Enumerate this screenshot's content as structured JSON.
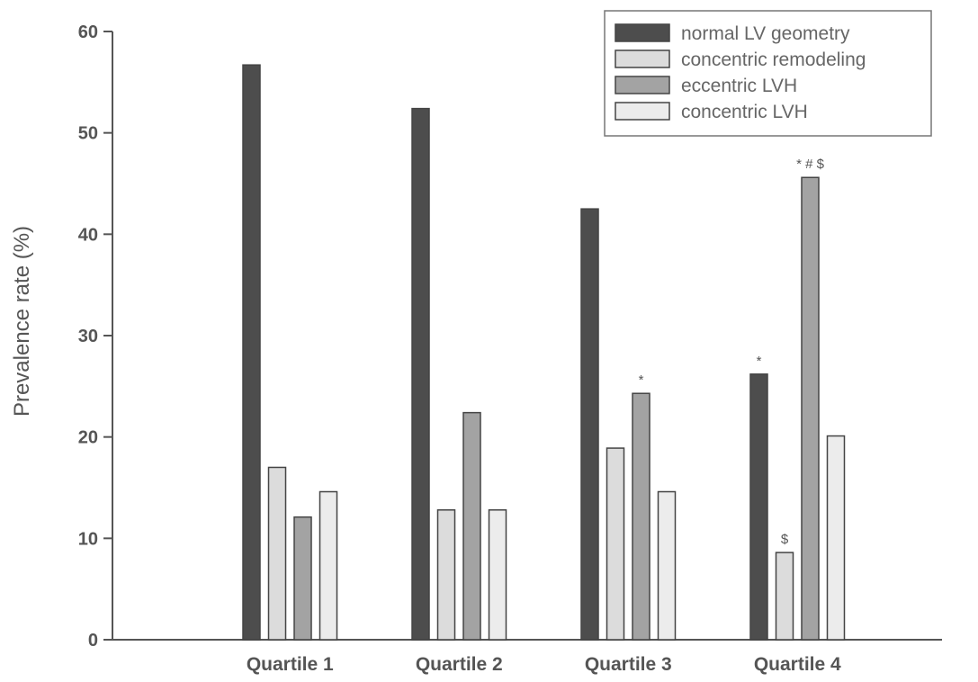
{
  "chart_data": {
    "type": "bar",
    "title": "",
    "xlabel": "",
    "ylabel": "Prevalence rate (%)",
    "ylim": [
      0,
      60
    ],
    "yticks": [
      0,
      10,
      20,
      30,
      40,
      50,
      60
    ],
    "grid": false,
    "legend_position": "top-right",
    "categories": [
      "Quartile 1",
      "Quartile 2",
      "Quartile 3",
      "Quartile 4"
    ],
    "series": [
      {
        "name": "normal LV geometry",
        "color": "#4d4d4d",
        "values": [
          56.7,
          52.4,
          42.5,
          26.2
        ]
      },
      {
        "name": "concentric remodeling",
        "color": "#dcdcdc",
        "values": [
          17.0,
          12.8,
          18.9,
          8.6
        ]
      },
      {
        "name": "eccentric LVH",
        "color": "#a3a3a3",
        "values": [
          12.1,
          22.4,
          24.3,
          45.6
        ]
      },
      {
        "name": "concentric LVH",
        "color": "#ececec",
        "values": [
          14.6,
          12.8,
          14.6,
          20.1
        ]
      }
    ],
    "annotations": [
      {
        "category": 2,
        "series": 2,
        "text": "*"
      },
      {
        "category": 3,
        "series": 0,
        "text": "*"
      },
      {
        "category": 3,
        "series": 1,
        "text": "$"
      },
      {
        "category": 3,
        "series": 2,
        "text": "* # $"
      }
    ]
  }
}
